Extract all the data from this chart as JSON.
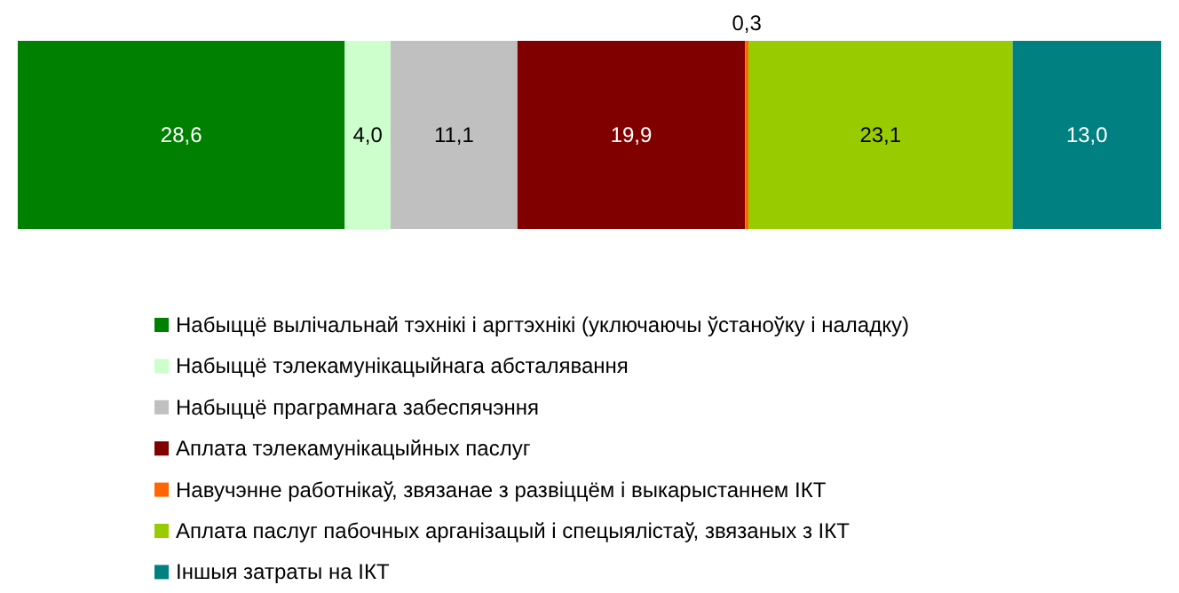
{
  "chart_data": {
    "type": "bar",
    "orientation": "horizontal",
    "stacked": true,
    "categories": [
      null
    ],
    "xlim": [
      0,
      100
    ],
    "legend": "bottom",
    "series": [
      {
        "name": "Набыццё вылічальнай тэхнікі і аргтэхнікі (уключаючы ўстаноўку і наладку)",
        "color": "#008000",
        "values": [
          28.6
        ],
        "value_labels": [
          "28,6"
        ]
      },
      {
        "name": "Набыццё тэлекамунікацыйнага абсталявання",
        "color": "#ccffcc",
        "values": [
          4.0
        ],
        "value_labels": [
          "4,0"
        ]
      },
      {
        "name": "Набыццё праграмнага забеспячэння",
        "color": "#c0c0c0",
        "values": [
          11.1
        ],
        "value_labels": [
          "11,1"
        ]
      },
      {
        "name": "Аплата тэлекамунікацыйных паслуг",
        "color": "#800000",
        "values": [
          19.9
        ],
        "value_labels": [
          "19,9"
        ]
      },
      {
        "name": "Навучэнне работнікаў, звязанае з развіццём і выкарыстаннем ІКТ",
        "color": "#ff6600",
        "values": [
          0.3
        ],
        "value_labels": [
          "0,3"
        ]
      },
      {
        "name": "Аплата паслуг пабочных арганізацый і спецыялістаў, звязаных з ІКТ",
        "color": "#99cc00",
        "values": [
          23.1
        ],
        "value_labels": [
          "23,1"
        ]
      },
      {
        "name": "Іншыя затраты на ІКТ",
        "color": "#008080",
        "values": [
          13.0
        ],
        "value_labels": [
          "13,0"
        ]
      }
    ]
  }
}
